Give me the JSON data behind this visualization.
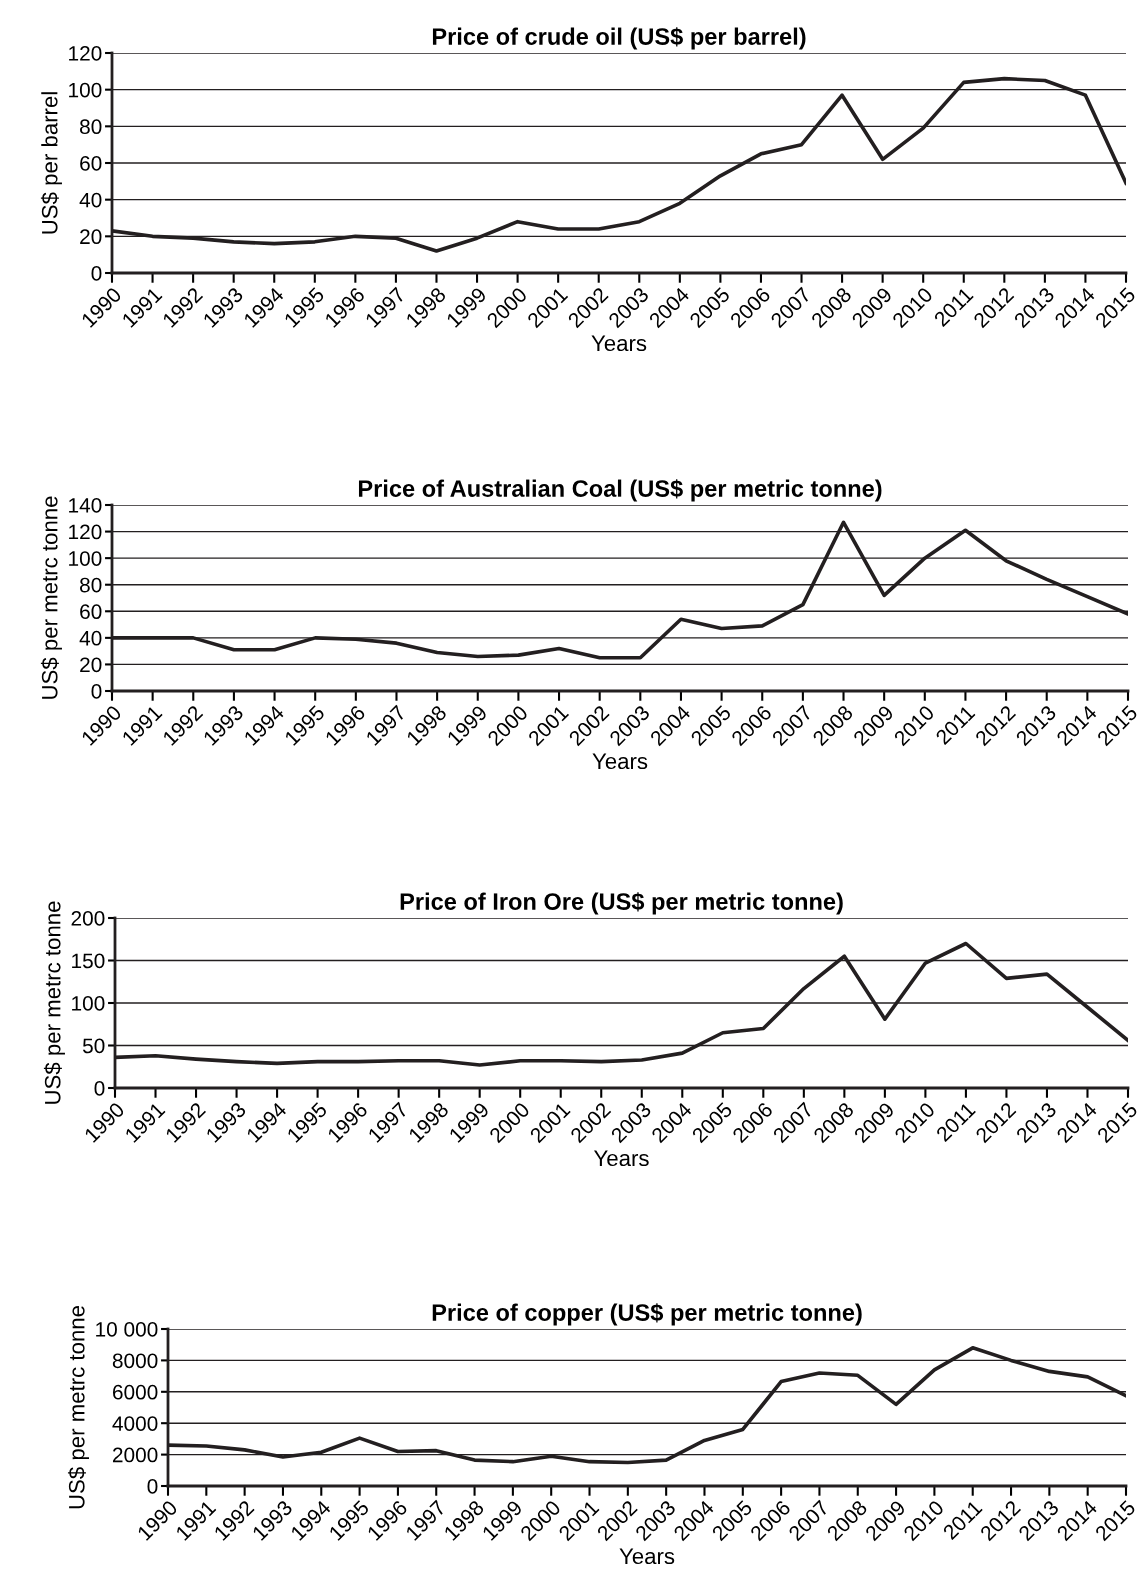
{
  "chart_data": [
    {
      "type": "line",
      "title": "Price of crude oil (US$ per barrel)",
      "xlabel": "Years",
      "ylabel": "US$ per barrel",
      "categories": [
        "1990",
        "1991",
        "1992",
        "1993",
        "1994",
        "1995",
        "1996",
        "1997",
        "1998",
        "1999",
        "2000",
        "2001",
        "2002",
        "2003",
        "2004",
        "2005",
        "2006",
        "2007",
        "2008",
        "2009",
        "2010",
        "2011",
        "2012",
        "2013",
        "2014",
        "2015"
      ],
      "series": [
        {
          "color": "#231f20",
          "values": [
            23,
            20,
            19,
            17,
            16,
            17,
            20,
            19,
            12,
            19,
            28,
            24,
            24,
            28,
            38,
            53,
            65,
            70,
            97,
            62,
            79,
            104,
            106,
            105,
            97,
            49
          ]
        }
      ],
      "ylim": [
        0,
        120
      ],
      "yticks": [
        0,
        20,
        40,
        60,
        80,
        100,
        120
      ],
      "grid": "y",
      "marker": "none",
      "line_style": "solid"
    },
    {
      "type": "line",
      "title": "Price of Australian Coal (US$ per metric tonne)",
      "xlabel": "Years",
      "ylabel": "US$ per metrc tonne",
      "categories": [
        "1990",
        "1991",
        "1992",
        "1993",
        "1994",
        "1995",
        "1996",
        "1997",
        "1998",
        "1999",
        "2000",
        "2001",
        "2002",
        "2003",
        "2004",
        "2005",
        "2006",
        "2007",
        "2008",
        "2009",
        "2010",
        "2011",
        "2012",
        "2013",
        "2014",
        "2015"
      ],
      "series": [
        {
          "color": "#231f20",
          "values": [
            40,
            40,
            40,
            31,
            31,
            40,
            39,
            36,
            29,
            26,
            27,
            32,
            25,
            25,
            54,
            47,
            49,
            65,
            127,
            72,
            100,
            121,
            98,
            84,
            71,
            58
          ]
        }
      ],
      "ylim": [
        0,
        140
      ],
      "yticks": [
        0,
        20,
        40,
        60,
        80,
        100,
        120,
        140
      ],
      "grid": "y",
      "marker": "none",
      "line_style": "solid"
    },
    {
      "type": "line",
      "title": "Price of Iron Ore (US$ per metric tonne)",
      "xlabel": "Years",
      "ylabel": "US$ per metrc tonne",
      "categories": [
        "1990",
        "1991",
        "1992",
        "1993",
        "1994",
        "1995",
        "1996",
        "1997",
        "1998",
        "1999",
        "2000",
        "2001",
        "2002",
        "2003",
        "2004",
        "2005",
        "2006",
        "2007",
        "2008",
        "2009",
        "2010",
        "2011",
        "2012",
        "2013",
        "2014",
        "2015"
      ],
      "series": [
        {
          "color": "#231f20",
          "values": [
            36,
            38,
            34,
            31,
            29,
            31,
            31,
            32,
            32,
            27,
            32,
            32,
            31,
            33,
            41,
            65,
            70,
            117,
            155,
            81,
            147,
            170,
            129,
            134,
            95,
            56
          ]
        }
      ],
      "ylim": [
        0,
        200
      ],
      "yticks": [
        0,
        50,
        100,
        150,
        200
      ],
      "grid": "y",
      "marker": "none",
      "line_style": "solid"
    },
    {
      "type": "line",
      "title": "Price of copper (US$ per metric tonne)",
      "xlabel": "Years",
      "ylabel": "US$ per metrc tonne",
      "categories": [
        "1990",
        "1991",
        "1992",
        "1993",
        "1994",
        "1995",
        "1996",
        "1997",
        "1998",
        "1999",
        "2000",
        "2001",
        "2002",
        "2003",
        "2004",
        "2005",
        "2006",
        "2007",
        "2008",
        "2009",
        "2010",
        "2011",
        "2012",
        "2013",
        "2014",
        "2015"
      ],
      "series": [
        {
          "color": "#231f20",
          "values": [
            2600,
            2550,
            2300,
            1850,
            2150,
            3050,
            2200,
            2250,
            1650,
            1550,
            1900,
            1550,
            1500,
            1650,
            2900,
            3600,
            6650,
            7200,
            7050,
            5200,
            7400,
            8800,
            8000,
            7300,
            6950,
            5750
          ]
        }
      ],
      "ylim": [
        0,
        10000
      ],
      "yticks": [
        0,
        2000,
        4000,
        6000,
        8000,
        {
          "value": 10000,
          "label": "10 000"
        }
      ],
      "grid": "y",
      "marker": "none",
      "line_style": "solid"
    }
  ]
}
